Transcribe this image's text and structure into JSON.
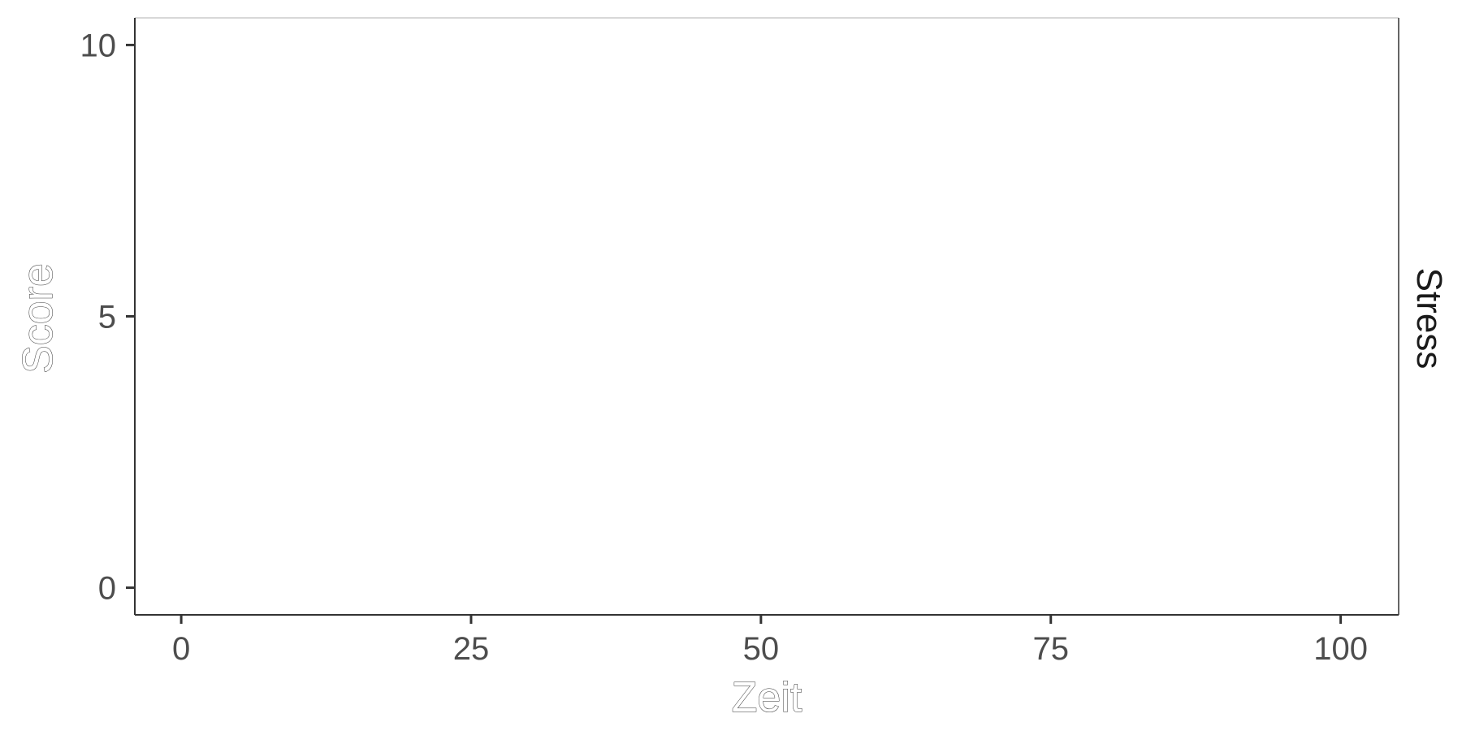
{
  "chart_data": {
    "type": "line",
    "title": "",
    "xlabel": "Zeit",
    "ylabel": "Score",
    "facet_label": "Stress",
    "xlim": [
      -4,
      105
    ],
    "ylim": [
      -0.5,
      10.5
    ],
    "x_ticks": [
      0,
      25,
      50,
      75,
      100
    ],
    "y_ticks": [
      0,
      5,
      10
    ],
    "x_tick_labels": [
      "0",
      "25",
      "50",
      "75",
      "100"
    ],
    "y_tick_labels": [
      "0",
      "5",
      "10"
    ],
    "grid": false,
    "series": []
  }
}
